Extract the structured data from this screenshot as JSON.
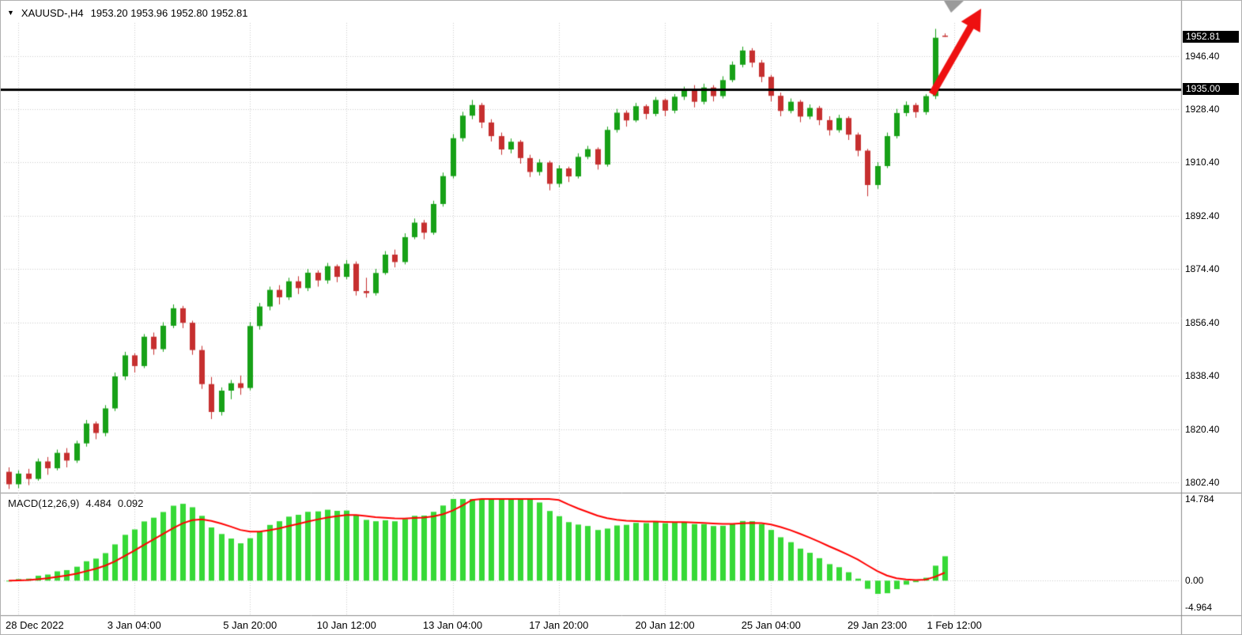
{
  "header": {
    "collapse_icon": "▼",
    "symbol": "XAUUSD-,H4",
    "ohlc": "1953.20 1953.96 1952.80 1952.81"
  },
  "colors": {
    "background": "#ffffff",
    "bull": "#17a117",
    "bear": "#c62f2f",
    "macd_bar": "#36d936",
    "macd_signal": "#ff0000",
    "grid": "#cdcdcd",
    "separator": "#8c8c8c",
    "hline": "#000000",
    "tag_bg": "#000000",
    "tag_fg": "#ffffff",
    "text": "#000000"
  },
  "chart_data": {
    "type": "candlestick",
    "symbol": "XAUUSD-",
    "timeframe": "H4",
    "current_candle": {
      "open": "1953.20",
      "high": "1953.96",
      "low": "1952.80",
      "close": "1952.81"
    },
    "y_axis": {
      "ticks": [
        "1946.40",
        "1928.40",
        "1910.40",
        "1892.40",
        "1874.40",
        "1856.40",
        "1838.40",
        "1820.40",
        "1802.40"
      ],
      "ylim": [
        1799.5,
        1957.5
      ],
      "current_price": "1952.81"
    },
    "x_axis": {
      "visible_slots": 122,
      "labels": [
        {
          "text": "28 Dec 2022",
          "slot": 1
        },
        {
          "text": "3 Jan 04:00",
          "slot": 13
        },
        {
          "text": "5 Jan 20:00",
          "slot": 25
        },
        {
          "text": "10 Jan 12:00",
          "slot": 35
        },
        {
          "text": "13 Jan 04:00",
          "slot": 46
        },
        {
          "text": "17 Jan 20:00",
          "slot": 57
        },
        {
          "text": "20 Jan 12:00",
          "slot": 68
        },
        {
          "text": "25 Jan 04:00",
          "slot": 79
        },
        {
          "text": "29 Jan 23:00",
          "slot": 90
        },
        {
          "text": "1 Feb 12:00",
          "slot": 98
        }
      ]
    },
    "candles": [
      [
        1806.0,
        1807.5,
        1800.2,
        1801.8
      ],
      [
        1801.8,
        1806.5,
        1800.5,
        1805.4
      ],
      [
        1805.4,
        1807.0,
        1801.5,
        1803.6
      ],
      [
        1803.6,
        1810.5,
        1803.0,
        1809.5
      ],
      [
        1809.5,
        1811.0,
        1805.0,
        1807.2
      ],
      [
        1807.2,
        1813.5,
        1806.5,
        1812.4
      ],
      [
        1812.4,
        1814.0,
        1807.5,
        1809.8
      ],
      [
        1809.8,
        1816.5,
        1809.0,
        1815.6
      ],
      [
        1815.6,
        1823.5,
        1814.5,
        1822.3
      ],
      [
        1822.3,
        1823.0,
        1817.0,
        1819.1
      ],
      [
        1819.1,
        1828.5,
        1818.0,
        1827.4
      ],
      [
        1827.4,
        1839.5,
        1826.5,
        1838.2
      ],
      [
        1838.2,
        1846.5,
        1837.0,
        1845.3
      ],
      [
        1845.3,
        1846.0,
        1839.5,
        1841.7
      ],
      [
        1841.7,
        1852.5,
        1841.0,
        1851.6
      ],
      [
        1851.6,
        1853.0,
        1845.5,
        1847.4
      ],
      [
        1847.4,
        1856.5,
        1846.5,
        1855.3
      ],
      [
        1855.3,
        1862.5,
        1854.5,
        1861.2
      ],
      [
        1861.2,
        1862.0,
        1854.5,
        1856.3
      ],
      [
        1856.3,
        1857.0,
        1845.5,
        1847.1
      ],
      [
        1847.1,
        1848.5,
        1834.0,
        1835.6
      ],
      [
        1835.6,
        1838.0,
        1823.8,
        1826.2
      ],
      [
        1826.2,
        1834.5,
        1825.0,
        1833.4
      ],
      [
        1833.4,
        1837.0,
        1830.5,
        1835.9
      ],
      [
        1835.9,
        1838.5,
        1832.0,
        1834.3
      ],
      [
        1834.3,
        1856.5,
        1833.5,
        1855.2
      ],
      [
        1855.2,
        1863.0,
        1854.0,
        1861.8
      ],
      [
        1861.8,
        1868.5,
        1860.5,
        1867.4
      ],
      [
        1867.4,
        1869.0,
        1862.5,
        1864.9
      ],
      [
        1864.9,
        1871.5,
        1864.0,
        1870.3
      ],
      [
        1870.3,
        1872.0,
        1866.0,
        1868.0
      ],
      [
        1868.0,
        1874.5,
        1867.0,
        1873.2
      ],
      [
        1873.2,
        1874.0,
        1868.5,
        1870.6
      ],
      [
        1870.6,
        1876.5,
        1869.5,
        1875.4
      ],
      [
        1875.4,
        1876.0,
        1870.0,
        1871.8
      ],
      [
        1871.8,
        1877.5,
        1871.0,
        1876.2
      ],
      [
        1876.2,
        1877.0,
        1865.5,
        1867.0
      ],
      [
        1867.0,
        1871.5,
        1864.8,
        1866.3
      ],
      [
        1866.3,
        1874.5,
        1865.5,
        1873.1
      ],
      [
        1873.1,
        1880.5,
        1872.5,
        1879.3
      ],
      [
        1879.3,
        1881.0,
        1875.0,
        1876.8
      ],
      [
        1876.8,
        1886.5,
        1876.0,
        1885.2
      ],
      [
        1885.2,
        1891.5,
        1884.5,
        1890.1
      ],
      [
        1890.1,
        1891.0,
        1884.5,
        1886.7
      ],
      [
        1886.7,
        1897.5,
        1886.0,
        1896.4
      ],
      [
        1896.4,
        1907.0,
        1895.5,
        1905.8
      ],
      [
        1905.8,
        1920.0,
        1905.0,
        1918.6
      ],
      [
        1918.6,
        1927.5,
        1917.5,
        1926.2
      ],
      [
        1926.2,
        1931.5,
        1925.0,
        1929.8
      ],
      [
        1929.8,
        1930.5,
        1922.0,
        1923.9
      ],
      [
        1923.9,
        1925.0,
        1917.5,
        1919.3
      ],
      [
        1919.3,
        1920.5,
        1913.0,
        1914.8
      ],
      [
        1914.8,
        1918.5,
        1913.5,
        1917.4
      ],
      [
        1917.4,
        1918.0,
        1910.0,
        1911.9
      ],
      [
        1911.9,
        1913.0,
        1905.5,
        1907.2
      ],
      [
        1907.2,
        1911.5,
        1906.0,
        1910.4
      ],
      [
        1910.4,
        1911.0,
        1901.0,
        1903.2
      ],
      [
        1903.2,
        1909.5,
        1902.0,
        1908.4
      ],
      [
        1908.4,
        1909.0,
        1903.8,
        1905.7
      ],
      [
        1905.7,
        1913.5,
        1905.0,
        1912.3
      ],
      [
        1912.3,
        1916.0,
        1911.5,
        1914.9
      ],
      [
        1914.9,
        1915.5,
        1908.0,
        1909.7
      ],
      [
        1909.7,
        1922.5,
        1909.0,
        1921.4
      ],
      [
        1921.4,
        1928.5,
        1920.5,
        1927.2
      ],
      [
        1927.2,
        1928.0,
        1922.5,
        1924.6
      ],
      [
        1924.6,
        1930.5,
        1924.0,
        1929.4
      ],
      [
        1929.4,
        1930.0,
        1925.0,
        1926.8
      ],
      [
        1926.8,
        1932.5,
        1926.0,
        1931.5
      ],
      [
        1931.5,
        1932.0,
        1926.0,
        1927.9
      ],
      [
        1927.9,
        1933.5,
        1927.0,
        1932.6
      ],
      [
        1932.6,
        1936.0,
        1931.5,
        1934.8
      ],
      [
        1934.8,
        1936.5,
        1929.0,
        1930.9
      ],
      [
        1930.9,
        1937.0,
        1930.0,
        1935.7
      ],
      [
        1935.7,
        1936.5,
        1931.0,
        1932.8
      ],
      [
        1932.8,
        1939.5,
        1932.0,
        1938.2
      ],
      [
        1938.2,
        1944.5,
        1937.5,
        1943.4
      ],
      [
        1943.4,
        1949.5,
        1942.5,
        1948.2
      ],
      [
        1948.2,
        1949.0,
        1942.5,
        1944.1
      ],
      [
        1944.1,
        1945.0,
        1937.5,
        1939.3
      ],
      [
        1939.3,
        1940.0,
        1931.0,
        1932.9
      ],
      [
        1932.9,
        1934.0,
        1926.0,
        1927.8
      ],
      [
        1927.8,
        1932.0,
        1927.0,
        1930.9
      ],
      [
        1930.9,
        1931.5,
        1924.0,
        1925.9
      ],
      [
        1925.9,
        1930.0,
        1925.0,
        1928.8
      ],
      [
        1928.8,
        1929.5,
        1923.0,
        1924.7
      ],
      [
        1924.7,
        1926.0,
        1919.5,
        1921.3
      ],
      [
        1921.3,
        1926.5,
        1920.5,
        1925.4
      ],
      [
        1925.4,
        1926.0,
        1918.0,
        1919.8
      ],
      [
        1919.8,
        1920.5,
        1912.5,
        1914.4
      ],
      [
        1914.4,
        1915.0,
        1899.0,
        1902.8
      ],
      [
        1902.8,
        1910.5,
        1901.5,
        1909.2
      ],
      [
        1909.2,
        1920.5,
        1908.5,
        1919.3
      ],
      [
        1919.3,
        1928.5,
        1918.5,
        1927.1
      ],
      [
        1927.1,
        1931.0,
        1926.0,
        1929.8
      ],
      [
        1929.8,
        1930.5,
        1925.5,
        1927.4
      ],
      [
        1927.4,
        1933.5,
        1926.5,
        1932.8
      ],
      [
        1932.8,
        1955.5,
        1931.8,
        1952.5
      ],
      [
        1953.2,
        1953.96,
        1952.8,
        1952.81
      ]
    ],
    "hline": {
      "price": 1935.0,
      "label": "1935.00",
      "color": "#000000",
      "width": 3
    },
    "annotations": {
      "arrow": {
        "color": "#ee1010",
        "from": [
          1178,
          118
        ],
        "to": [
          1240,
          10
        ]
      },
      "cursor": {
        "color": "#9a9a9a",
        "points": [
          [
            1193,
            0
          ],
          [
            1218,
            0
          ],
          [
            1202,
            15
          ]
        ]
      }
    },
    "macd": {
      "label": "MACD(12,26,9)",
      "value_main": "4.484",
      "value_signal": "0.092",
      "fast": 12,
      "slow": 26,
      "signal": 9,
      "axis_ticks": [
        "14.784",
        "0.00",
        "-4.964"
      ],
      "range": [
        -4.964,
        14.784
      ]
    }
  }
}
